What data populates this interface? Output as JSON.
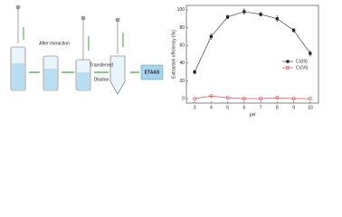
{
  "diagram": {
    "labels": [
      "After extraction",
      "Transferred",
      "Dilution",
      "ETAAS"
    ]
  },
  "chart_data": {
    "type": "line",
    "x_label": "pH",
    "y_label": "Extraction efficiency (%)",
    "x": [
      3,
      4,
      5,
      6,
      7,
      8,
      9,
      10
    ],
    "series": [
      {
        "name": "Cr(III)",
        "color": "#222222",
        "marker": "square",
        "values": [
          30,
          70,
          92,
          98,
          95,
          90,
          77,
          51
        ],
        "errors": [
          2,
          3,
          2,
          3,
          2,
          3,
          2,
          3
        ]
      },
      {
        "name": "Cr(VI)",
        "color": "#e0303a",
        "marker": "circle",
        "values": [
          0,
          3,
          1,
          0,
          0,
          1,
          0,
          0
        ]
      }
    ],
    "xlim": [
      2.5,
      10.5
    ],
    "xticks": [
      3,
      4,
      5,
      6,
      7,
      8,
      9,
      10
    ],
    "ylim": [
      -5,
      105
    ],
    "yticks": [
      0,
      20,
      40,
      60,
      80,
      100
    ],
    "legend": "right"
  }
}
